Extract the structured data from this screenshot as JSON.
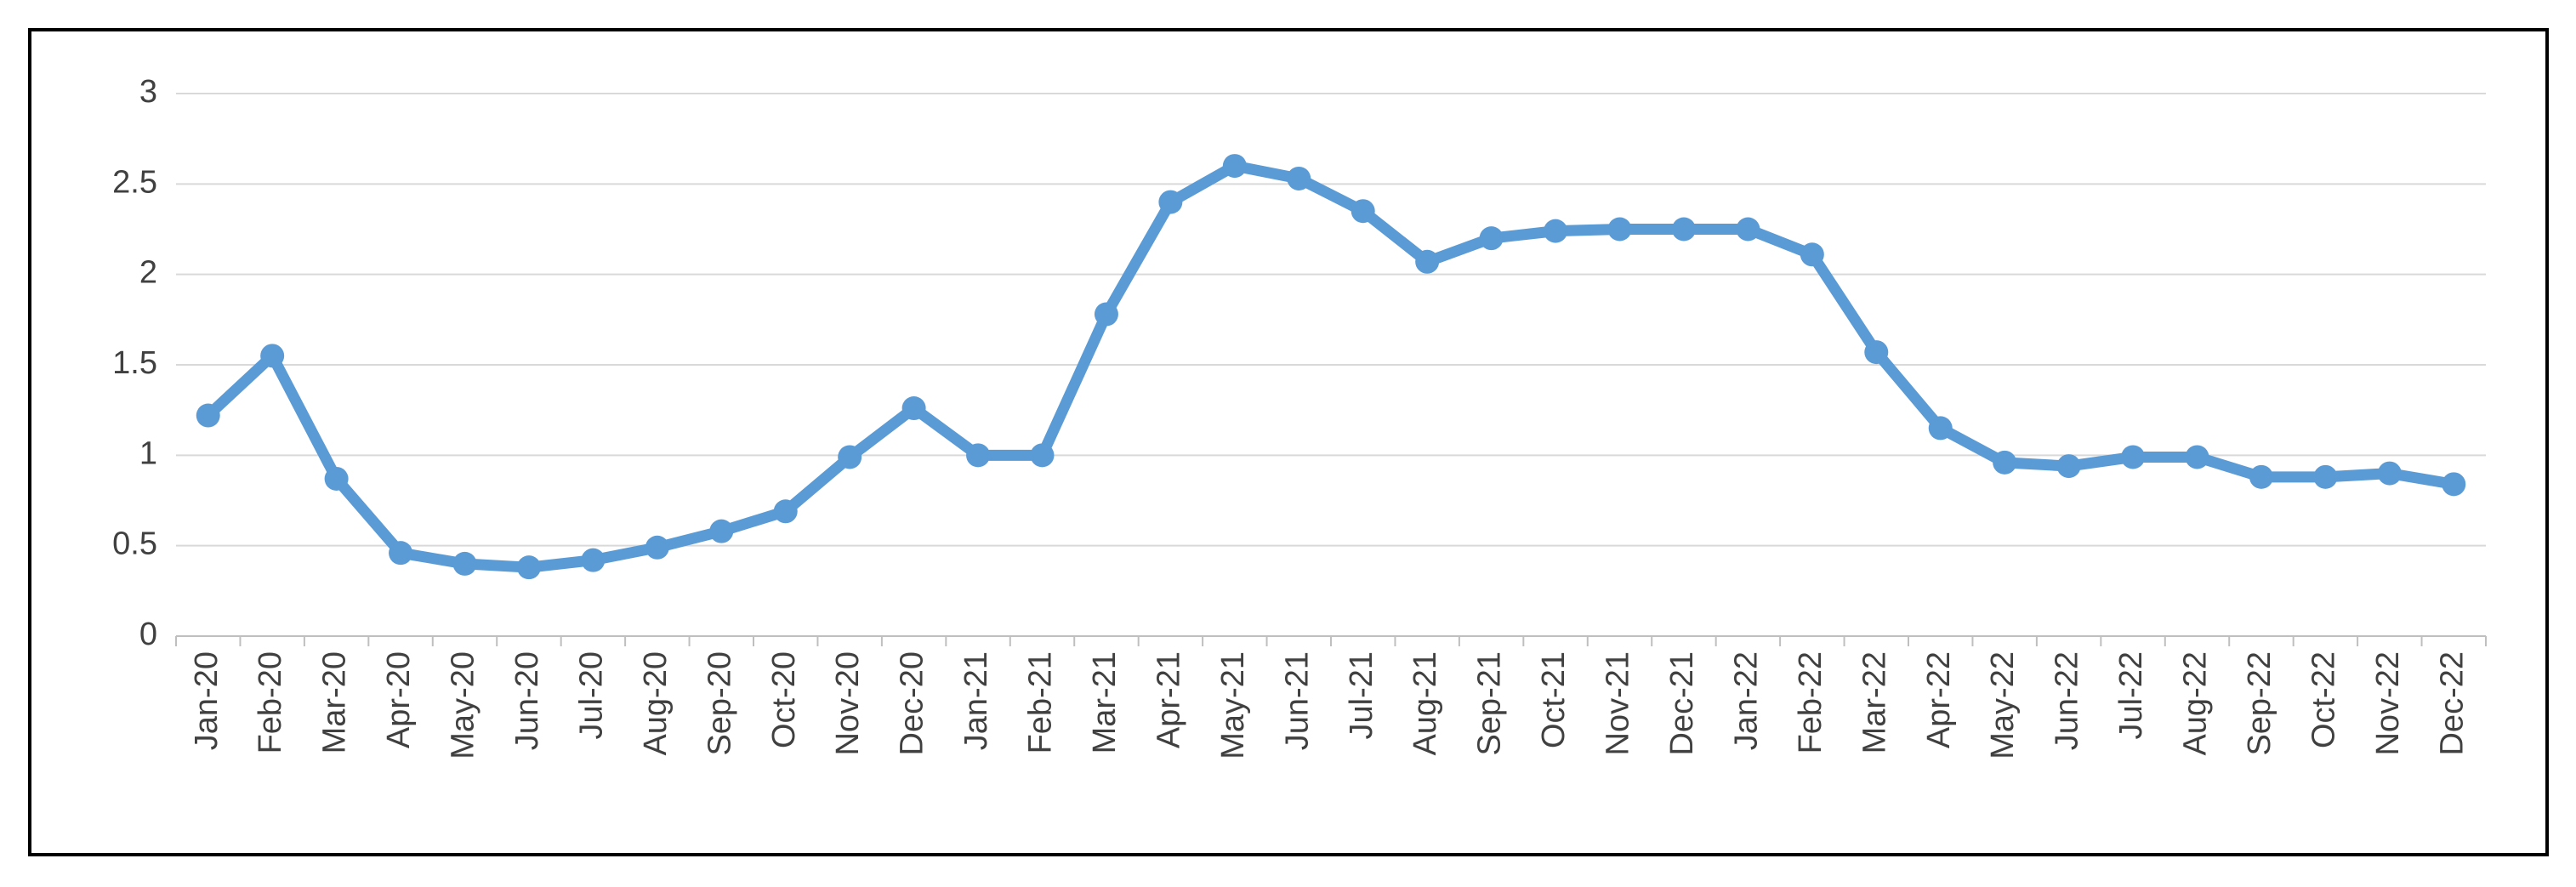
{
  "chart_data": {
    "type": "line",
    "categories": [
      "Jan-20",
      "Feb-20",
      "Mar-20",
      "Apr-20",
      "May-20",
      "Jun-20",
      "Jul-20",
      "Aug-20",
      "Sep-20",
      "Oct-20",
      "Nov-20",
      "Dec-20",
      "Jan-21",
      "Feb-21",
      "Mar-21",
      "Apr-21",
      "May-21",
      "Jun-21",
      "Jul-21",
      "Aug-21",
      "Sep-21",
      "Oct-21",
      "Nov-21",
      "Dec-21",
      "Jan-22",
      "Feb-22",
      "Mar-22",
      "Apr-22",
      "May-22",
      "Jun-22",
      "Jul-22",
      "Aug-22",
      "Sep-22",
      "Oct-22",
      "Nov-22",
      "Dec-22"
    ],
    "values": [
      1.22,
      1.55,
      0.87,
      0.46,
      0.4,
      0.38,
      0.42,
      0.49,
      0.58,
      0.69,
      0.99,
      1.26,
      1.0,
      1.0,
      1.78,
      2.4,
      2.6,
      2.53,
      2.35,
      2.07,
      2.2,
      2.24,
      2.25,
      2.25,
      2.25,
      2.11,
      1.57,
      1.15,
      0.96,
      0.94,
      0.99,
      0.99,
      0.88,
      0.88,
      0.9,
      0.84
    ],
    "color": "#5b9bd5",
    "ylim": [
      0,
      3
    ],
    "yticks": [
      0,
      0.5,
      1,
      1.5,
      2,
      2.5,
      3
    ],
    "grid": true
  }
}
